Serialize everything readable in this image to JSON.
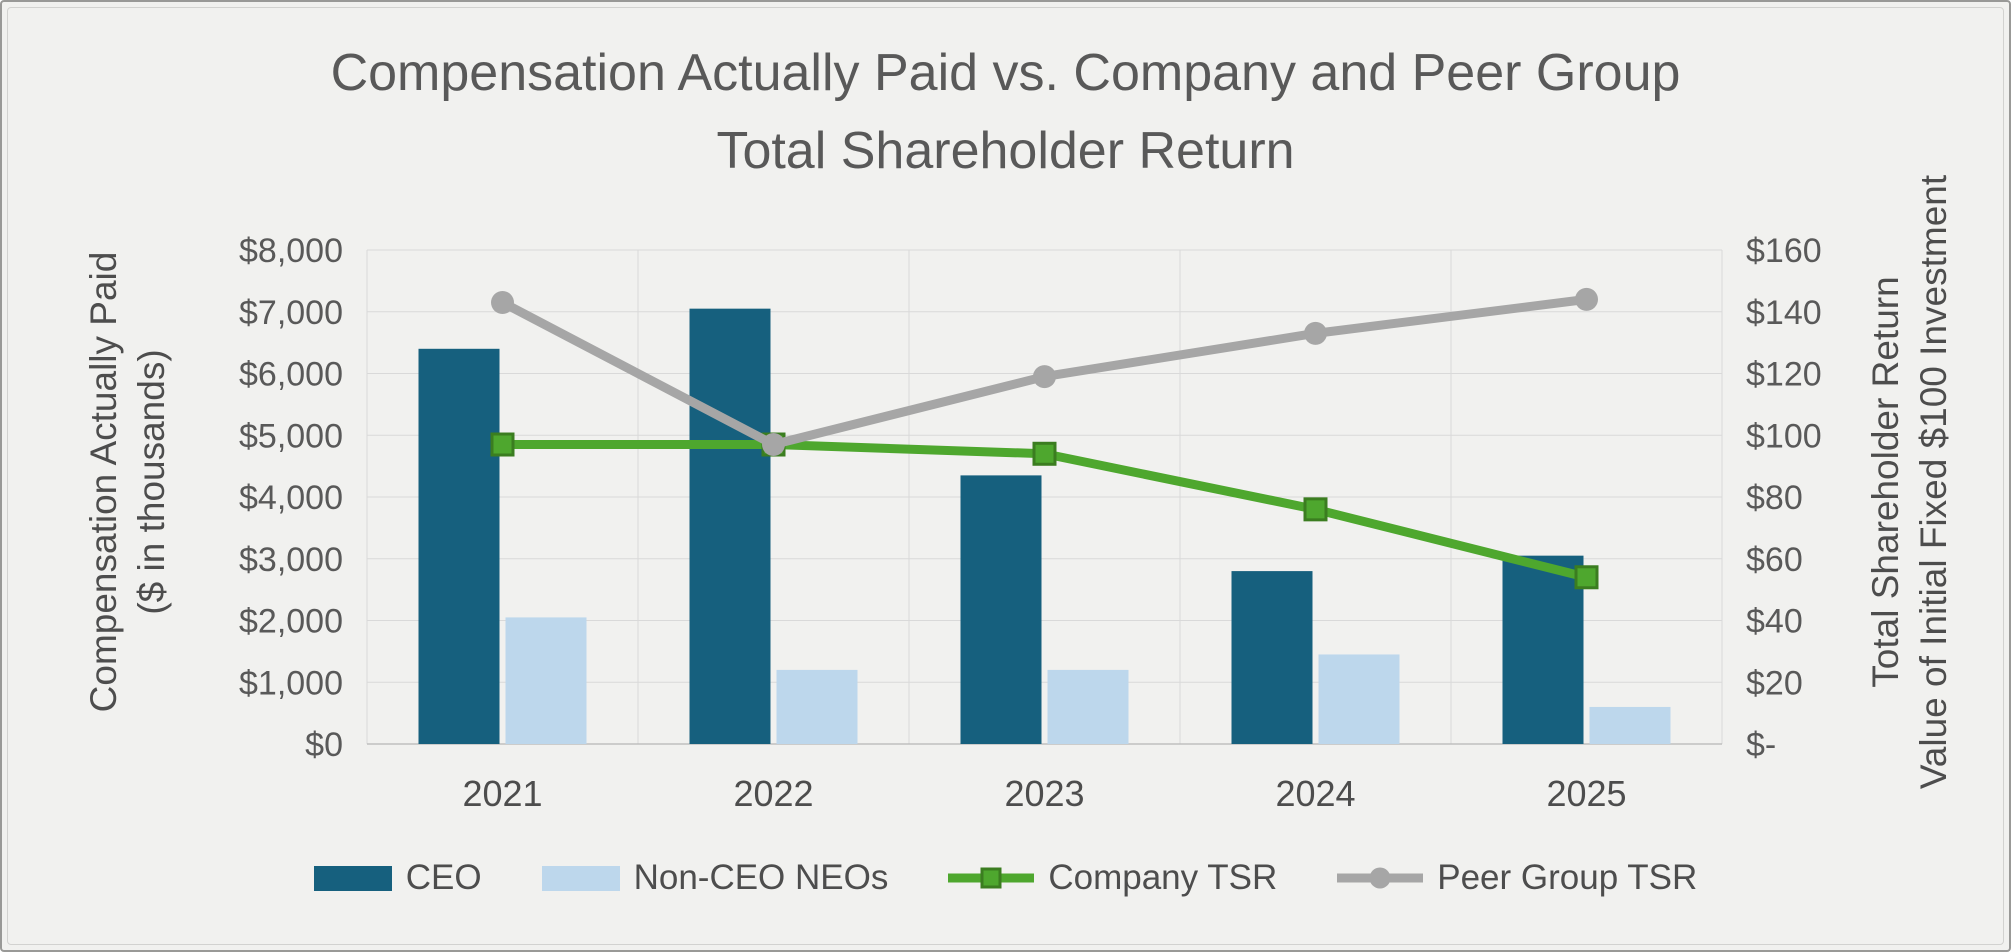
{
  "title": {
    "line1": "Compensation Actually Paid vs. Company and Peer Group",
    "line2": "Total Shareholder Return"
  },
  "chart_data": {
    "type": "combo-bar-line",
    "title": "Compensation Actually Paid vs. Company and Peer Group Total Shareholder Return",
    "categories": [
      "2021",
      "2022",
      "2023",
      "2024",
      "2025"
    ],
    "series": [
      {
        "name": "CEO",
        "chart_type": "bar",
        "axis": "left",
        "color": "#16607E",
        "values": [
          6400,
          7050,
          4350,
          2800,
          3050
        ]
      },
      {
        "name": "Non-CEO NEOs",
        "chart_type": "bar",
        "axis": "left",
        "color": "#BDD7EC",
        "values": [
          2050,
          1200,
          1200,
          1450,
          600
        ]
      },
      {
        "name": "Company TSR",
        "chart_type": "line",
        "axis": "right",
        "color": "#4EA72E",
        "marker": "square",
        "marker_stroke": "#3B7D20",
        "values": [
          97,
          97,
          94,
          76,
          54
        ]
      },
      {
        "name": "Peer Group TSR",
        "chart_type": "line",
        "axis": "right",
        "color": "#A6A6A6",
        "marker": "circle",
        "marker_stroke": "#A6A6A6",
        "values": [
          143,
          97,
          119,
          133,
          144
        ]
      }
    ],
    "left_axis": {
      "title_line1": "Compensation Actually Paid",
      "title_line2": "($ in thousands)",
      "min": 0,
      "max": 8000,
      "step": 1000,
      "tick_labels": [
        "$0",
        "$1,000",
        "$2,000",
        "$3,000",
        "$4,000",
        "$5,000",
        "$6,000",
        "$7,000",
        "$8,000"
      ]
    },
    "right_axis": {
      "title_line1": "Total Shareholder Return",
      "title_line2": "Value of Initial Fixed $100 Investment",
      "min": 0,
      "max": 160,
      "step": 20,
      "tick_labels": [
        "$-",
        "$20",
        "$40",
        "$60",
        "$80",
        "$100",
        "$120",
        "$140",
        "$160"
      ]
    },
    "legend": {
      "position": "bottom",
      "entries": [
        "CEO",
        "Non-CEO NEOs",
        "Company TSR",
        "Peer Group TSR"
      ]
    },
    "grid": {
      "horizontal": true,
      "vertical": true
    },
    "colors": {
      "grid": "#D9D9D9",
      "axis_line": "#BFBFBF",
      "text": "#595959"
    }
  }
}
